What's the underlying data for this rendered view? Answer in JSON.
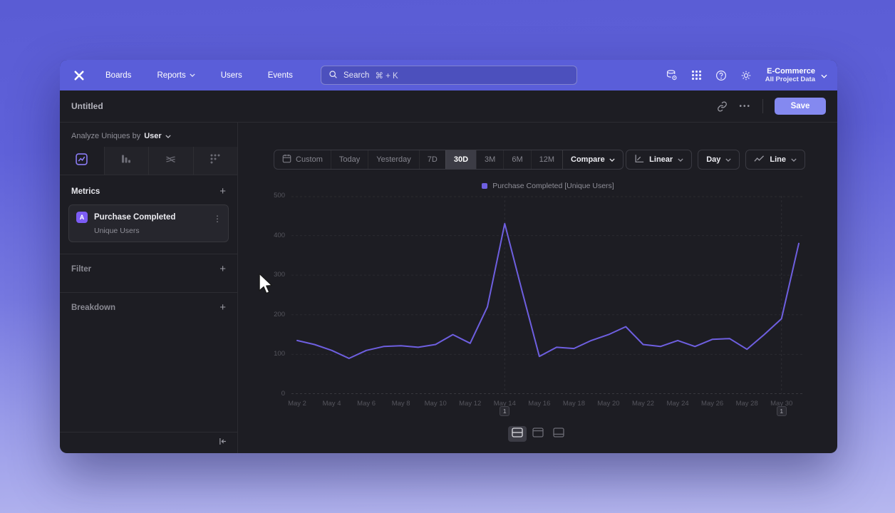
{
  "colors": {
    "accent": "#6e5fe0",
    "metric_badge": "#7c5cf5",
    "navbar": "#5a5ed9",
    "save_button": "#8489f0"
  },
  "navbar": {
    "items": [
      {
        "label": "Boards",
        "dropdown": false
      },
      {
        "label": "Reports",
        "dropdown": true
      },
      {
        "label": "Users",
        "dropdown": false
      },
      {
        "label": "Events",
        "dropdown": false
      }
    ],
    "search": {
      "placeholder": "Search",
      "shortcut": "⌘ + K"
    },
    "project": {
      "name": "E-Commerce",
      "scope": "All Project Data"
    }
  },
  "header": {
    "title": "Untitled",
    "menu": "•••",
    "save_label": "Save"
  },
  "sidebar": {
    "analyze_prefix": "Analyze Uniques by",
    "analyze_value": "User",
    "tabs": [
      {
        "name": "insights",
        "active": true
      },
      {
        "name": "funnels",
        "active": false
      },
      {
        "name": "flows",
        "active": false
      },
      {
        "name": "retention",
        "active": false
      }
    ],
    "metrics": {
      "title": "Metrics",
      "add": "+",
      "items": [
        {
          "badge": "A",
          "name": "Purchase Completed",
          "subtitle": "Unique Users"
        }
      ]
    },
    "filter": {
      "title": "Filter",
      "add": "+"
    },
    "breakdown": {
      "title": "Breakdown",
      "add": "+"
    }
  },
  "toolbar": {
    "ranges": [
      "Custom",
      "Today",
      "Yesterday",
      "7D",
      "30D",
      "3M",
      "6M",
      "12M"
    ],
    "active_range": "30D",
    "compare": "Compare",
    "scale": "Linear",
    "interval": "Day",
    "chart_type": "Line"
  },
  "chart_data": {
    "type": "line",
    "legend_position": "top",
    "ylim": [
      0,
      500
    ],
    "yticks": [
      0,
      100,
      200,
      300,
      400,
      500
    ],
    "grid": "dashed",
    "x": [
      "May 2",
      "May 3",
      "May 4",
      "May 5",
      "May 6",
      "May 7",
      "May 8",
      "May 9",
      "May 10",
      "May 11",
      "May 12",
      "May 13",
      "May 14",
      "May 15",
      "May 16",
      "May 17",
      "May 18",
      "May 19",
      "May 20",
      "May 21",
      "May 22",
      "May 23",
      "May 24",
      "May 25",
      "May 26",
      "May 27",
      "May 28",
      "May 29",
      "May 30",
      "May 31"
    ],
    "x_tick_labels": [
      "May 2",
      "May 4",
      "May 6",
      "May 8",
      "May 10",
      "May 12",
      "May 14",
      "May 16",
      "May 18",
      "May 20",
      "May 22",
      "May 24",
      "May 26",
      "May 28",
      "May 30"
    ],
    "series": [
      {
        "name": "Purchase Completed [Unique Users]",
        "color": "#6e5fe0",
        "values": [
          135,
          125,
          110,
          90,
          110,
          120,
          122,
          118,
          125,
          150,
          128,
          220,
          430,
          260,
          95,
          118,
          115,
          135,
          150,
          170,
          125,
          120,
          135,
          120,
          138,
          140,
          113,
          150,
          190,
          380
        ]
      }
    ],
    "annotations": [
      {
        "x_label": "May 14",
        "x_index": 12,
        "label": "1"
      },
      {
        "x_label": "May 30",
        "x_index": 28,
        "label": "1"
      }
    ]
  },
  "footer": {
    "layout_toggles": [
      {
        "name": "layout-split",
        "active": true
      },
      {
        "name": "layout-top",
        "active": false
      },
      {
        "name": "layout-bottom",
        "active": false
      }
    ]
  }
}
